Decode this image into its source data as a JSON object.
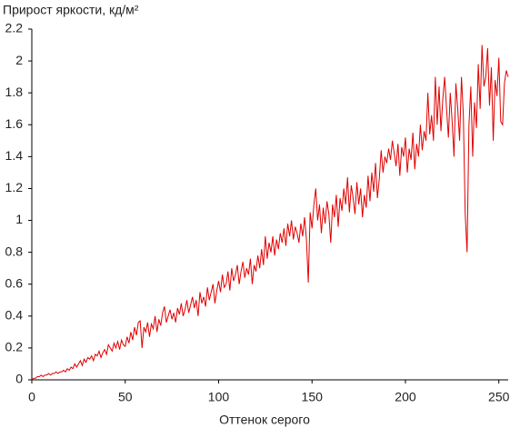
{
  "chart_data": {
    "type": "line",
    "title": "Прирост яркости, кд/м²",
    "x_label": "Оттенок серого",
    "xlim": [
      0,
      255
    ],
    "xticks": [
      0,
      50,
      100,
      150,
      200,
      250
    ],
    "ylim": [
      0,
      2.2
    ],
    "yticks": [
      0,
      0.2,
      0.4,
      0.6,
      0.8,
      1,
      1.2,
      1.4,
      1.6,
      1.8,
      2,
      2.2
    ],
    "grid": false,
    "x": [
      0,
      1,
      2,
      3,
      4,
      5,
      6,
      7,
      8,
      9,
      10,
      11,
      12,
      13,
      14,
      15,
      16,
      17,
      18,
      19,
      20,
      21,
      22,
      23,
      24,
      25,
      26,
      27,
      28,
      29,
      30,
      31,
      32,
      33,
      34,
      35,
      36,
      37,
      38,
      39,
      40,
      41,
      42,
      43,
      44,
      45,
      46,
      47,
      48,
      49,
      50,
      51,
      52,
      53,
      54,
      55,
      56,
      57,
      58,
      59,
      60,
      61,
      62,
      63,
      64,
      65,
      66,
      67,
      68,
      69,
      70,
      71,
      72,
      73,
      74,
      75,
      76,
      77,
      78,
      79,
      80,
      81,
      82,
      83,
      84,
      85,
      86,
      87,
      88,
      89,
      90,
      91,
      92,
      93,
      94,
      95,
      96,
      97,
      98,
      99,
      100,
      101,
      102,
      103,
      104,
      105,
      106,
      107,
      108,
      109,
      110,
      111,
      112,
      113,
      114,
      115,
      116,
      117,
      118,
      119,
      120,
      121,
      122,
      123,
      124,
      125,
      126,
      127,
      128,
      129,
      130,
      131,
      132,
      133,
      134,
      135,
      136,
      137,
      138,
      139,
      140,
      141,
      142,
      143,
      144,
      145,
      146,
      147,
      148,
      149,
      150,
      151,
      152,
      153,
      154,
      155,
      156,
      157,
      158,
      159,
      160,
      161,
      162,
      163,
      164,
      165,
      166,
      167,
      168,
      169,
      170,
      171,
      172,
      173,
      174,
      175,
      176,
      177,
      178,
      179,
      180,
      181,
      182,
      183,
      184,
      185,
      186,
      187,
      188,
      189,
      190,
      191,
      192,
      193,
      194,
      195,
      196,
      197,
      198,
      199,
      200,
      201,
      202,
      203,
      204,
      205,
      206,
      207,
      208,
      209,
      210,
      211,
      212,
      213,
      214,
      215,
      216,
      217,
      218,
      219,
      220,
      221,
      222,
      223,
      224,
      225,
      226,
      227,
      228,
      229,
      230,
      231,
      232,
      233,
      234,
      235,
      236,
      237,
      238,
      239,
      240,
      241,
      242,
      243,
      244,
      245,
      246,
      247,
      248,
      249,
      250,
      251,
      252,
      253,
      254,
      255
    ],
    "series": [
      {
        "color": "#e00000",
        "values": [
          0,
          0.01,
          0.01,
          0.02,
          0.02,
          0.03,
          0.02,
          0.03,
          0.03,
          0.04,
          0.03,
          0.04,
          0.04,
          0.05,
          0.04,
          0.05,
          0.05,
          0.06,
          0.05,
          0.07,
          0.06,
          0.08,
          0.07,
          0.1,
          0.08,
          0.1,
          0.12,
          0.09,
          0.13,
          0.11,
          0.14,
          0.13,
          0.15,
          0.12,
          0.16,
          0.15,
          0.18,
          0.14,
          0.17,
          0.19,
          0.16,
          0.22,
          0.2,
          0.18,
          0.23,
          0.2,
          0.24,
          0.19,
          0.25,
          0.22,
          0.21,
          0.27,
          0.23,
          0.3,
          0.25,
          0.33,
          0.28,
          0.36,
          0.37,
          0.2,
          0.33,
          0.3,
          0.36,
          0.27,
          0.35,
          0.32,
          0.4,
          0.3,
          0.38,
          0.34,
          0.42,
          0.46,
          0.36,
          0.4,
          0.44,
          0.38,
          0.42,
          0.36,
          0.45,
          0.41,
          0.48,
          0.4,
          0.44,
          0.5,
          0.42,
          0.47,
          0.52,
          0.45,
          0.5,
          0.4,
          0.55,
          0.48,
          0.52,
          0.46,
          0.58,
          0.5,
          0.55,
          0.6,
          0.48,
          0.56,
          0.62,
          0.55,
          0.66,
          0.58,
          0.6,
          0.68,
          0.56,
          0.7,
          0.62,
          0.66,
          0.72,
          0.6,
          0.68,
          0.74,
          0.64,
          0.7,
          0.66,
          0.76,
          0.6,
          0.72,
          0.68,
          0.78,
          0.7,
          0.82,
          0.72,
          0.9,
          0.76,
          0.86,
          0.8,
          0.9,
          0.78,
          0.88,
          0.82,
          0.92,
          0.86,
          0.95,
          0.84,
          0.98,
          0.9,
          1.0,
          0.88,
          0.96,
          0.92,
          0.86,
          0.98,
          0.9,
          1.02,
          0.88,
          0.61,
          1.05,
          0.95,
          1.1,
          1.2,
          1.0,
          1.1,
          0.92,
          1.08,
          0.98,
          1.12,
          1.04,
          0.86,
          1.1,
          1.02,
          1.16,
          0.96,
          1.14,
          1.06,
          1.2,
          1.1,
          1.27,
          1.05,
          1.22,
          1.14,
          1.04,
          1.24,
          1.1,
          1.2,
          1.02,
          1.16,
          1.08,
          1.28,
          1.12,
          1.3,
          1.18,
          1.36,
          1.14,
          1.26,
          1.44,
          1.3,
          1.4,
          1.36,
          1.45,
          1.38,
          1.5,
          1.42,
          1.34,
          1.48,
          1.28,
          1.46,
          1.4,
          1.52,
          1.3,
          1.45,
          1.38,
          1.55,
          1.32,
          1.48,
          1.4,
          1.6,
          1.44,
          1.56,
          1.5,
          1.8,
          1.54,
          1.66,
          1.5,
          1.9,
          1.6,
          1.84,
          1.56,
          1.76,
          1.9,
          1.7,
          1.52,
          1.8,
          1.62,
          1.4,
          1.86,
          1.7,
          1.5,
          1.9,
          1.66,
          1.04,
          0.8,
          1.6,
          1.84,
          1.4,
          1.74,
          1.58,
          1.98,
          1.7,
          2.1,
          1.84,
          1.9,
          2.08,
          1.72,
          1.96,
          1.5,
          1.88,
          1.78,
          2.02,
          1.62,
          1.6,
          1.86,
          1.94,
          1.9
        ]
      }
    ]
  }
}
